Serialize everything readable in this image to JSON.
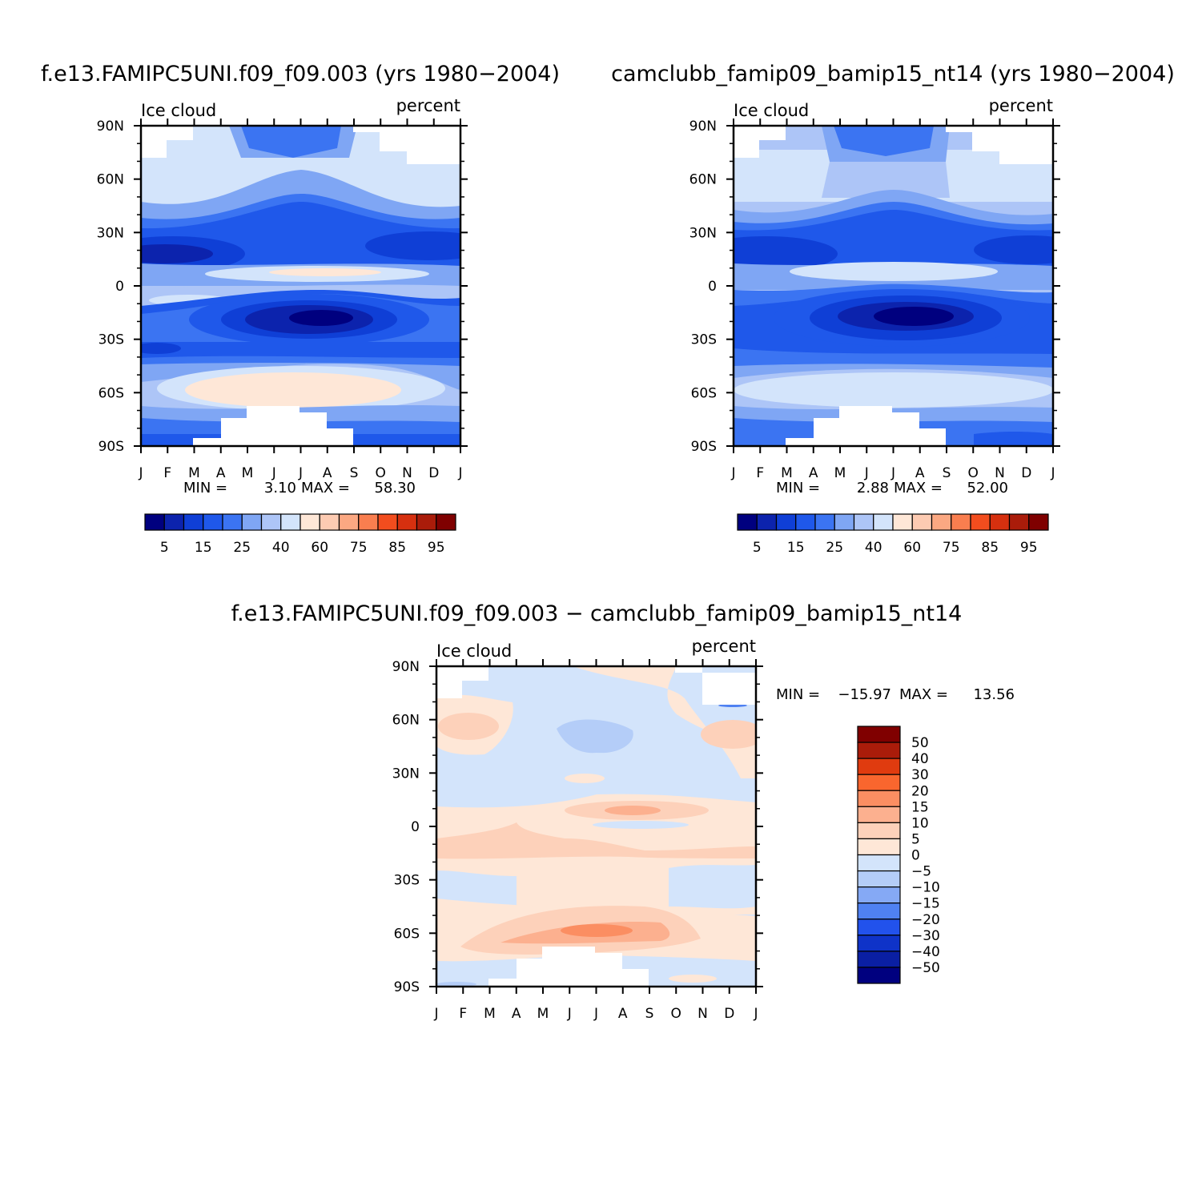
{
  "chart_data": [
    {
      "type": "heatmap",
      "title": "f.e13.FAMIPC5UNI.f09_f09.003 (yrs 1980−2004)",
      "left_label": "Ice cloud",
      "right_label": "percent",
      "x_tick_labels": [
        "J",
        "F",
        "M",
        "A",
        "M",
        "J",
        "J",
        "A",
        "S",
        "O",
        "N",
        "D",
        "J"
      ],
      "y_tick_labels": [
        "90N",
        "60N",
        "30N",
        "0",
        "30S",
        "60S",
        "90S"
      ],
      "ylim": [
        -90,
        90
      ],
      "stats": {
        "min_label": "MIN =",
        "min": "3.10",
        "max_label": "MAX =",
        "max": "58.30"
      },
      "colorbar_ticks": [
        "5",
        "15",
        "25",
        "40",
        "60",
        "75",
        "85",
        "95"
      ],
      "levels": [
        5,
        10,
        15,
        20,
        25,
        30,
        40,
        50,
        60,
        70,
        75,
        80,
        85,
        90,
        95
      ]
    },
    {
      "type": "heatmap",
      "title": "camclubb_famip09_bamip15_nt14 (yrs 1980−2004)",
      "left_label": "Ice cloud",
      "right_label": "percent",
      "x_tick_labels": [
        "J",
        "F",
        "M",
        "A",
        "M",
        "J",
        "J",
        "A",
        "S",
        "O",
        "N",
        "D",
        "J"
      ],
      "y_tick_labels": [
        "90N",
        "60N",
        "30N",
        "0",
        "30S",
        "60S",
        "90S"
      ],
      "ylim": [
        -90,
        90
      ],
      "stats": {
        "min_label": "MIN =",
        "min": "2.88",
        "max_label": "MAX =",
        "max": "52.00"
      },
      "colorbar_ticks": [
        "5",
        "15",
        "25",
        "40",
        "60",
        "75",
        "85",
        "95"
      ],
      "levels": [
        5,
        10,
        15,
        20,
        25,
        30,
        40,
        50,
        60,
        70,
        75,
        80,
        85,
        90,
        95
      ]
    },
    {
      "type": "heatmap",
      "title": "f.e13.FAMIPC5UNI.f09_f09.003 − camclubb_famip09_bamip15_nt14",
      "left_label": "Ice cloud",
      "right_label": "percent",
      "x_tick_labels": [
        "J",
        "F",
        "M",
        "A",
        "M",
        "J",
        "J",
        "A",
        "S",
        "O",
        "N",
        "D",
        "J"
      ],
      "y_tick_labels": [
        "90N",
        "60N",
        "30N",
        "0",
        "30S",
        "60S",
        "90S"
      ],
      "ylim": [
        -90,
        90
      ],
      "stats": {
        "min_label": "MIN =",
        "min": "−15.97",
        "max_label": "MAX =",
        "max": "13.56"
      },
      "colorbar_ticks": [
        "50",
        "40",
        "30",
        "20",
        "15",
        "10",
        "5",
        "0",
        "−5",
        "−10",
        "−15",
        "−20",
        "−30",
        "−40",
        "−50"
      ],
      "levels": [
        -50,
        -40,
        -30,
        -20,
        -15,
        -10,
        -5,
        0,
        5,
        10,
        15,
        20,
        30,
        40,
        50
      ]
    }
  ],
  "colors": {
    "seq": [
      "#00007f",
      "#0c23ad",
      "#0f3fd6",
      "#1f58ea",
      "#3b74f2",
      "#7fa6f4",
      "#adc5f7",
      "#d3e4fb",
      "#fee7d7",
      "#fdcbb2",
      "#fba882",
      "#f97e4f",
      "#f24d1e",
      "#d6300f",
      "#aa1c0a",
      "#7f0000"
    ],
    "div_bar_top_to_bottom": [
      "#800000",
      "#aa1c0a",
      "#e03b0f",
      "#f9662e",
      "#fb8e62",
      "#fcb08f",
      "#fdd1ba",
      "#fee7d7",
      "#d3e4fb",
      "#b4cdf8",
      "#85a9f5",
      "#4f81f2",
      "#2252ec",
      "#0f33c8",
      "#0a1fa3",
      "#00007f"
    ],
    "missing": "#ffffff"
  }
}
